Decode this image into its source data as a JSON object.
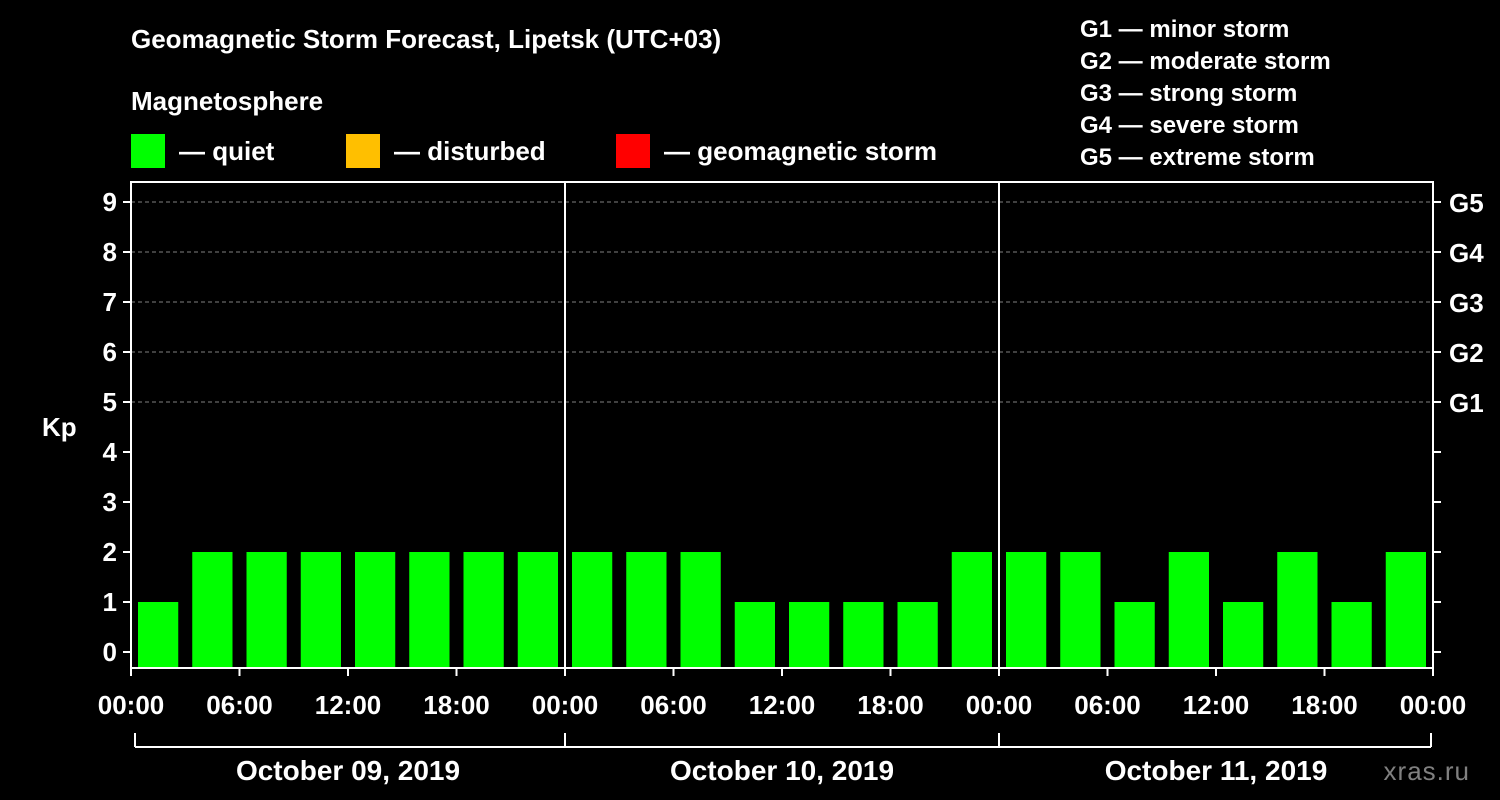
{
  "header": {
    "title": "Geomagnetic Storm Forecast, Lipetsk (UTC+03)",
    "section": "Magnetosphere"
  },
  "legend": [
    {
      "label": "— quiet",
      "color": "#00ff00"
    },
    {
      "label": "— disturbed",
      "color": "#ffbf00"
    },
    {
      "label": "— geomagnetic storm",
      "color": "#ff0000"
    }
  ],
  "g_scale": [
    "G1 — minor storm",
    "G2 — moderate storm",
    "G3 — strong storm",
    "G4 — severe storm",
    "G5 — extreme storm"
  ],
  "watermark": "xras.ru",
  "chart_data": {
    "type": "bar",
    "ylabel": "Kp",
    "ylim": [
      0,
      9
    ],
    "y_ticks": [
      "0",
      "1",
      "2",
      "3",
      "4",
      "5",
      "6",
      "7",
      "8",
      "9"
    ],
    "right_ticks": [
      {
        "kp": 5,
        "label": "G1"
      },
      {
        "kp": 6,
        "label": "G2"
      },
      {
        "kp": 7,
        "label": "G3"
      },
      {
        "kp": 8,
        "label": "G4"
      },
      {
        "kp": 9,
        "label": "G5"
      }
    ],
    "x_tick_labels": [
      "00:00",
      "06:00",
      "12:00",
      "18:00",
      "00:00",
      "06:00",
      "12:00",
      "18:00",
      "00:00",
      "06:00",
      "12:00",
      "18:00",
      "00:00"
    ],
    "days": [
      "October 09, 2019",
      "October 10, 2019",
      "October 11, 2019"
    ],
    "grid": "dashed horizontal at Kp 5-9",
    "bar_color": "#00ff00",
    "values": [
      1,
      2,
      2,
      2,
      2,
      2,
      2,
      2,
      2,
      2,
      2,
      1,
      1,
      1,
      1,
      2,
      2,
      2,
      1,
      2,
      1,
      2,
      1,
      2
    ]
  }
}
